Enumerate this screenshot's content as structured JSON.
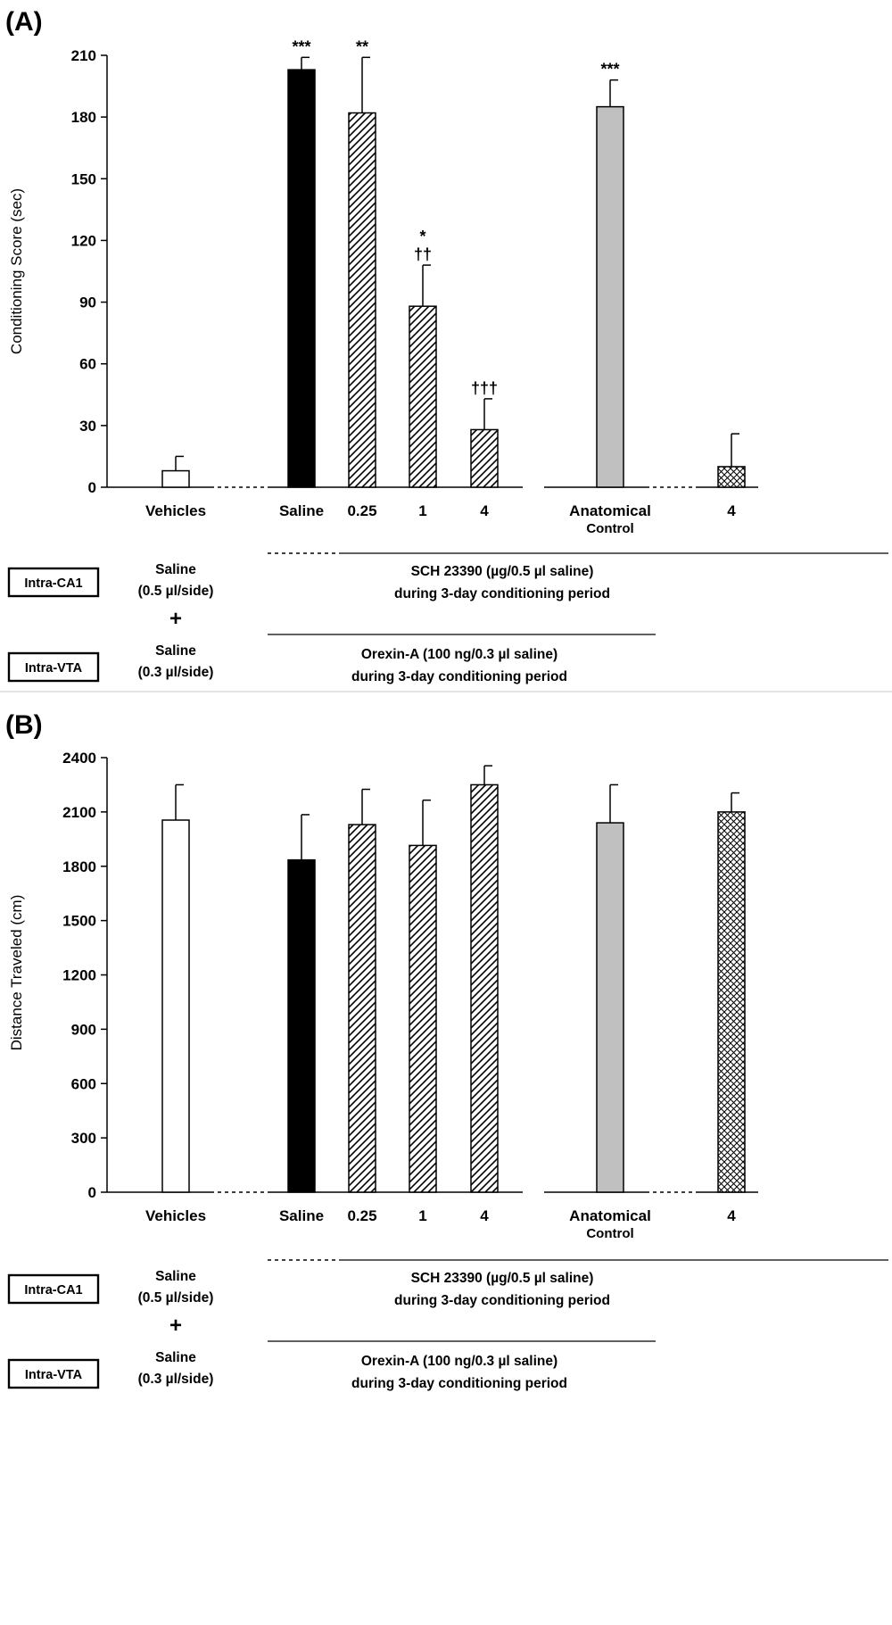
{
  "panels": [
    {
      "label": "(A)",
      "ylabel": "Conditioning Score (sec)",
      "ticks": [
        "0",
        "30",
        "60",
        "90",
        "120",
        "150",
        "180",
        "210"
      ],
      "categories": [
        "Vehicles",
        "Saline",
        "0.25",
        "1",
        "4",
        "Anatomical",
        "4"
      ],
      "category_sublabel": "Control",
      "group_labels": {
        "ca1_box": "Intra-CA1",
        "vta_box": "Intra-VTA",
        "saline_ca1_1": "Saline",
        "saline_ca1_2": "(0.5 µl/side)",
        "plus": "+",
        "saline_vta_1": "Saline",
        "saline_vta_2": "(0.3 µl/side)",
        "sch_1": "SCH 23390 (µg/0.5 µl saline)",
        "sch_2": "during 3-day conditioning period",
        "orexin_1": "Orexin-A (100 ng/0.3 µl saline)",
        "orexin_2": "during 3-day conditioning period"
      }
    },
    {
      "label": "(B)",
      "ylabel": "Distance Traveled (cm)",
      "ticks": [
        "0",
        "300",
        "600",
        "900",
        "1200",
        "1500",
        "1800",
        "2100",
        "2400"
      ],
      "categories": [
        "Vehicles",
        "Saline",
        "0.25",
        "1",
        "4",
        "Anatomical",
        "4"
      ],
      "category_sublabel": "Control",
      "group_labels": {
        "ca1_box": "Intra-CA1",
        "vta_box": "Intra-VTA",
        "saline_ca1_1": "Saline",
        "saline_ca1_2": "(0.5 µl/side)",
        "plus": "+",
        "saline_vta_1": "Saline",
        "saline_vta_2": "(0.3 µl/side)",
        "sch_1": "SCH 23390 (µg/0.5 µl saline)",
        "sch_2": "during 3-day conditioning period",
        "orexin_1": "Orexin-A (100 ng/0.3 µl saline)",
        "orexin_2": "during 3-day conditioning period"
      }
    }
  ],
  "chart_data": [
    {
      "type": "bar",
      "title": "(A)",
      "ylabel": "Conditioning Score (sec)",
      "ylim": [
        0,
        210
      ],
      "categories": [
        "Vehicles",
        "Saline",
        "0.25",
        "1",
        "4",
        "Anatomical Control",
        "4"
      ],
      "values": [
        8,
        203,
        182,
        88,
        28,
        185,
        10
      ],
      "errors": [
        7,
        6,
        27,
        20,
        15,
        13,
        16
      ],
      "annotations": [
        "",
        "***",
        "**",
        "*|††",
        "†††",
        "***",
        ""
      ],
      "fills": [
        "white",
        "black",
        "hatch",
        "hatch",
        "hatch",
        "gray",
        "crosshatch"
      ],
      "grid": false
    },
    {
      "type": "bar",
      "title": "(B)",
      "ylabel": "Distance Traveled (cm)",
      "ylim": [
        0,
        2400
      ],
      "categories": [
        "Vehicles",
        "Saline",
        "0.25",
        "1",
        "4",
        "Anatomical Control",
        "4"
      ],
      "values": [
        2055,
        1835,
        2030,
        1915,
        2250,
        2040,
        2100
      ],
      "errors": [
        195,
        250,
        195,
        250,
        105,
        210,
        105
      ],
      "annotations": [
        "",
        "",
        "",
        "",
        "",
        "",
        ""
      ],
      "fills": [
        "white",
        "black",
        "hatch",
        "hatch",
        "hatch",
        "gray",
        "crosshatch"
      ],
      "grid": false
    }
  ],
  "colors": {
    "black": "#000000",
    "gray": "#c0c0c0",
    "white": "#ffffff"
  }
}
